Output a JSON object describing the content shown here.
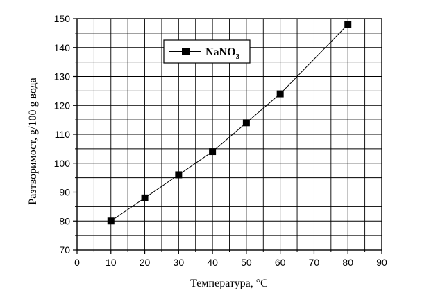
{
  "chart_data": {
    "type": "line",
    "title": "",
    "xlabel": "Температура, °С",
    "ylabel": "Разтворимост, g/100 g  вода",
    "xlim": [
      0,
      90
    ],
    "ylim": [
      70,
      150
    ],
    "x_ticks": [
      0,
      10,
      20,
      30,
      40,
      50,
      60,
      70,
      80,
      90
    ],
    "y_ticks": [
      70,
      80,
      90,
      100,
      110,
      120,
      130,
      140,
      150
    ],
    "grid": true,
    "legend_position": "top-center",
    "series": [
      {
        "name": "NaNO",
        "name_subscript": "3",
        "marker": "square",
        "color": "#000000",
        "x": [
          10,
          20,
          30,
          40,
          50,
          60,
          80
        ],
        "y": [
          80,
          88,
          96,
          104,
          114,
          124,
          148
        ]
      }
    ]
  }
}
